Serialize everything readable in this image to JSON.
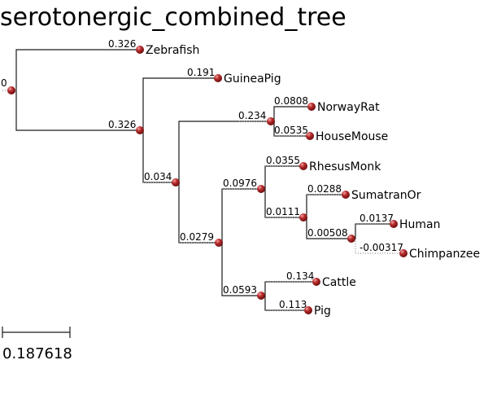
{
  "title": "serotonergic_combined_tree",
  "colors": {
    "node": "#9e1a1a",
    "node_highlight": "#e88a8a",
    "branch": "#1a1a1a"
  },
  "scale_bar": {
    "label": "0.187618"
  },
  "root": {
    "label": "0"
  },
  "branches": {
    "zebrafish": "0.326",
    "clade_mammals": "0.326",
    "guineapig": "0.191",
    "clade_rest": "0.034",
    "clade_rodents": "0.234",
    "norwayrat": "0.0808",
    "housemouse": "0.0535",
    "clade_primates_ungulates": "0.0279",
    "clade_primates": "0.0976",
    "rhesusmonk": "0.0355",
    "clade_apes": "0.0111",
    "sumatranor": "0.0288",
    "clade_human_chimp": "0.00508",
    "human": "0.0137",
    "chimpanzee": "-0.00317",
    "clade_ungulates": "0.0593",
    "cattle": "0.134",
    "pig": "0.113"
  },
  "leaves": {
    "zebrafish": "Zebrafish",
    "guineapig": "GuineaPig",
    "norwayrat": "NorwayRat",
    "housemouse": "HouseMouse",
    "rhesusmonk": "RhesusMonk",
    "sumatranor": "SumatranOr",
    "human": "Human",
    "chimpanzee": "Chimpanzee",
    "cattle": "Cattle",
    "pig": "Pig"
  }
}
